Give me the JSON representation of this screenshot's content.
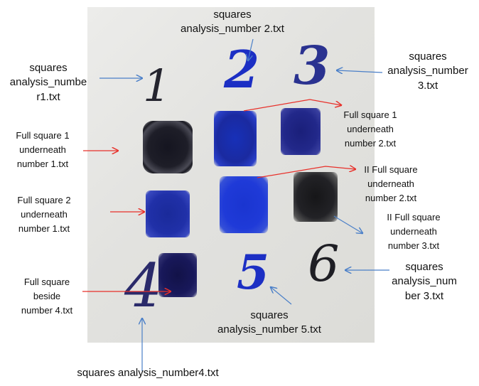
{
  "photo": {
    "digits": [
      "1",
      "2",
      "3",
      "4",
      "5",
      "6"
    ]
  },
  "labels": {
    "top_center": "squares\nanalysis_number 2.txt",
    "left_top": "squares\nanalysis_numbe\nr1.txt",
    "right_top": "squares\nanalysis_number\n3.txt",
    "full_sq1_num2": "Full square 1\nunderneath\nnumber 2.txt",
    "full_sq1_num1": "Full square 1\nunderneath\nnumber 1.txt",
    "ii_full_num2": "II Full square\nunderneath\nnumber 2.txt",
    "full_sq2_num1": "Full square 2\nunderneath\nnumber 1.txt",
    "ii_full_num3": "II Full square\nunderneath\nnumber 3.txt",
    "right_bottom": "squares\nanalysis_num\nber 3.txt",
    "full_beside_4": "Full square\nbeside\nnumber 4.txt",
    "bottom_center": "squares\nanalysis_number 5.txt",
    "bottom": "squares analysis_number4.txt"
  },
  "colors": {
    "blue_ink": "#1c2fc4",
    "black_ink": "#1a1a2a",
    "red_arrow": "#e8302a",
    "blue_arrow": "#4a7fc8"
  }
}
